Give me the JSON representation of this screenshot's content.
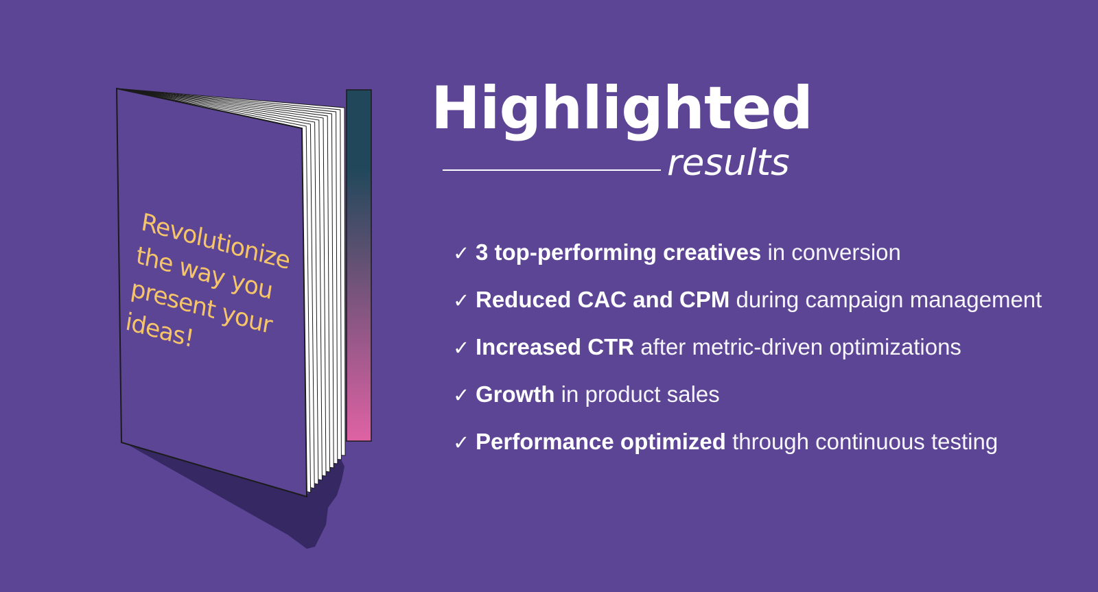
{
  "colors": {
    "background": "#5c4595",
    "text": "#ffffff",
    "cover_text": "#f6c56a",
    "spine_gradient_top": "#20485a",
    "spine_gradient_bottom": "#df62a4",
    "shadow": "#362863",
    "book_outline": "#1b1b1b"
  },
  "book": {
    "cover_lines": [
      "Revolutionize",
      "the way you",
      "present your",
      "ideas!"
    ]
  },
  "header": {
    "title": "Highlighted",
    "subtitle": "results"
  },
  "results": [
    {
      "check": "✓",
      "bold": "3 top-performing creatives",
      "rest": " in conversion"
    },
    {
      "check": "✓",
      "bold": "Reduced CAC and CPM",
      "rest": " during campaign management"
    },
    {
      "check": "✓",
      "bold": "Increased CTR",
      "rest": " after metric-driven optimizations"
    },
    {
      "check": "✓",
      "bold": "Growth",
      "rest": " in product sales"
    },
    {
      "check": "✓",
      "bold": "Performance optimized",
      "rest": " through continuous testing"
    }
  ]
}
